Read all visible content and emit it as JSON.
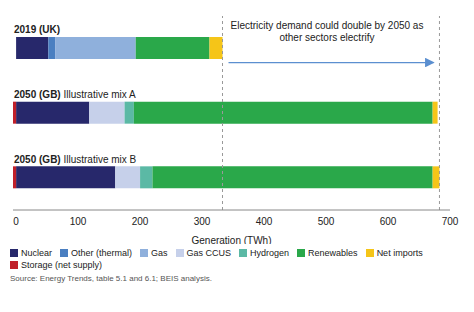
{
  "chart_data": {
    "type": "bar",
    "orientation": "horizontal",
    "stacked": true,
    "categories": [
      "2019 (UK)",
      "2050 (GB) Illustrative mix A",
      "2050 (GB) Illustrative mix B"
    ],
    "series": [
      {
        "name": "Nuclear",
        "color": "#27286b",
        "values": [
          52,
          118,
          160
        ]
      },
      {
        "name": "Other (thermal)",
        "color": "#4a7fc1",
        "values": [
          11,
          0,
          0
        ]
      },
      {
        "name": "Gas",
        "color": "#8fb0dc",
        "values": [
          130,
          0,
          0
        ]
      },
      {
        "name": "Gas CCUS",
        "color": "#c6d0ea",
        "values": [
          0,
          57,
          40
        ]
      },
      {
        "name": "Hydrogen",
        "color": "#5bb9a5",
        "values": [
          0,
          15,
          20
        ]
      },
      {
        "name": "Renewables",
        "color": "#2aa84a",
        "values": [
          119,
          482,
          452
        ]
      },
      {
        "name": "Net imports",
        "color": "#f5c518",
        "values": [
          21,
          8,
          11
        ]
      },
      {
        "name": "Storage (net supply)",
        "color": "#c0202a",
        "values": [
          0,
          -5,
          -5
        ]
      }
    ],
    "xlim": [
      -5,
      700
    ],
    "xticks": [
      0,
      100,
      200,
      300,
      400,
      500,
      600,
      700
    ],
    "x_label": "Generation (TWh)",
    "annotation": "Electricity demand could double by 2050 as other sectors electrify",
    "reference_lines": [
      333,
      683
    ],
    "source": "Source: Energy Trends, table 5.1 and 6.1; BEIS analysis.",
    "legend": "bottom"
  }
}
